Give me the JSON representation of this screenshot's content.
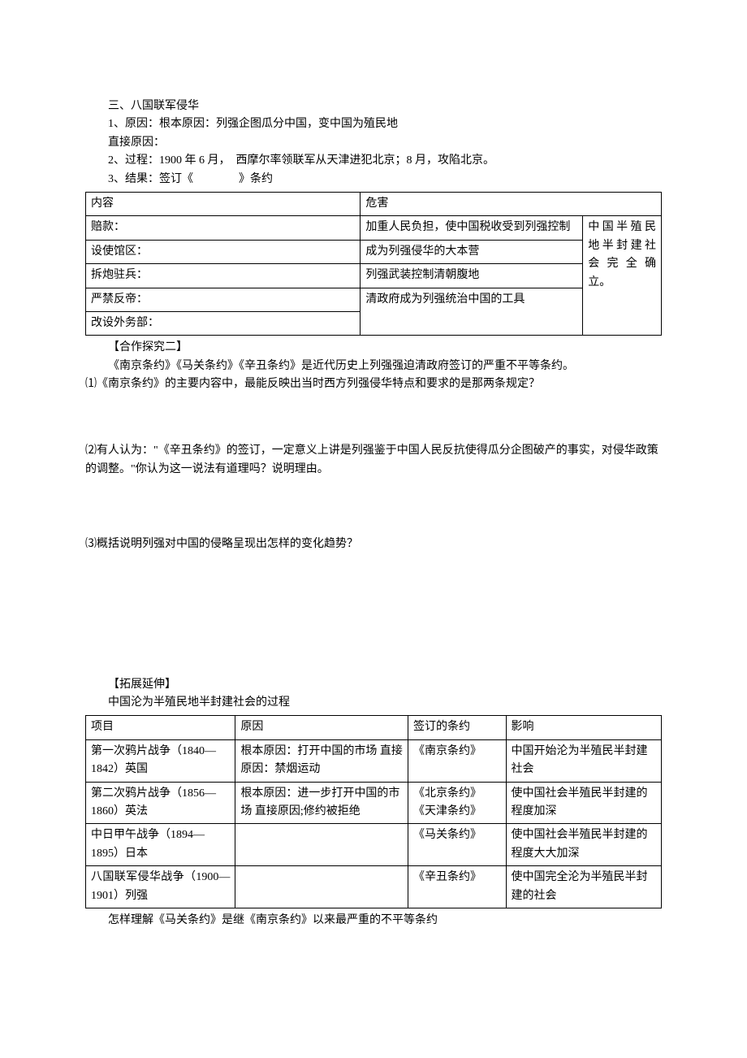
{
  "section3": {
    "title": "三、八国联军侵华",
    "reason1": "1、原因：根本原因：列强企图瓜分中国，变中国为殖民地",
    "reason2": "直接原因：",
    "process": "2、过程：1900 年 6 月，　西摩尔率领联军从天津进犯北京；8 月，攻陷北京。",
    "result": "3、结果：签订《　　　　》条约"
  },
  "table1": {
    "r1c1": "内容",
    "r1c2": "危害",
    "r2c1": "赔款：",
    "r2c2": "加重人民负担，使中国税收受到列强控制",
    "r3c1": "设使馆区：",
    "r3c2": "成为列强侵华的大本营",
    "r4c1": "拆炮驻兵：",
    "r4c2": "列强武装控制清朝腹地",
    "r5c1": "严禁反帝：",
    "r56c2": "清政府成为列强统治中国的工具",
    "r6c1": "改设外务部：",
    "sidecol": "中国半殖民地半封建社会完全确立。"
  },
  "coop": {
    "title": "【合作探究二】",
    "intro": "《南京条约》《马关条约》《辛丑条约》是近代历史上列强强迫清政府签订的严重不平等条约。",
    "q1": "⑴《南京条约》的主要内容中，最能反映出当时西方列强侵华特点和要求的是那两条规定？",
    "q2": "⑵有人认为：\"《辛丑条约》的签订，一定意义上讲是列强鉴于中国人民反抗使得瓜分企图破产的事实，对侵华政策的调整。\"你认为这一说法有道理吗？说明理由。",
    "q3": "⑶概括说明列强对中国的侵略呈现出怎样的变化趋势？"
  },
  "ext": {
    "title": "【拓展延伸】",
    "sub": "中国沦为半殖民地半封建社会的过程"
  },
  "table2": {
    "h1": "项目",
    "h2": "原因",
    "h3": "签订的条约",
    "h4": "影响",
    "r1c1": "第一次鸦片战争（1840—1842）英国",
    "r1c2": "根本原因：打开中国的市场\n直接原因：禁烟运动",
    "r1c3": "《南京条约》",
    "r1c4": "中国开始沦为半殖民半封建社会",
    "r2c1": "第二次鸦片战争（1856—1860）英法",
    "r2c2": "根本原因：进一步打开中国的市场\n直接原因;修约被拒绝",
    "r2c3": "《北京条约》\n《天津条约》",
    "r2c4": "使中国社会半殖民半封建的程度加深",
    "r3c1": "中日甲午战争（1894—1895）日本",
    "r3c2": "",
    "r3c3": "《马关条约》",
    "r3c4": "使中国社会半殖民半封建的程度大大加深",
    "r4c1": "八国联军侵华战争（1900—1901）列强",
    "r4c2": "",
    "r4c3": "《辛丑条约》",
    "r4c4": "使中国完全沦为半殖民半封建的社会"
  },
  "footer": "怎样理解《马关条约》是继《南京条约》以来最严重的不平等条约"
}
